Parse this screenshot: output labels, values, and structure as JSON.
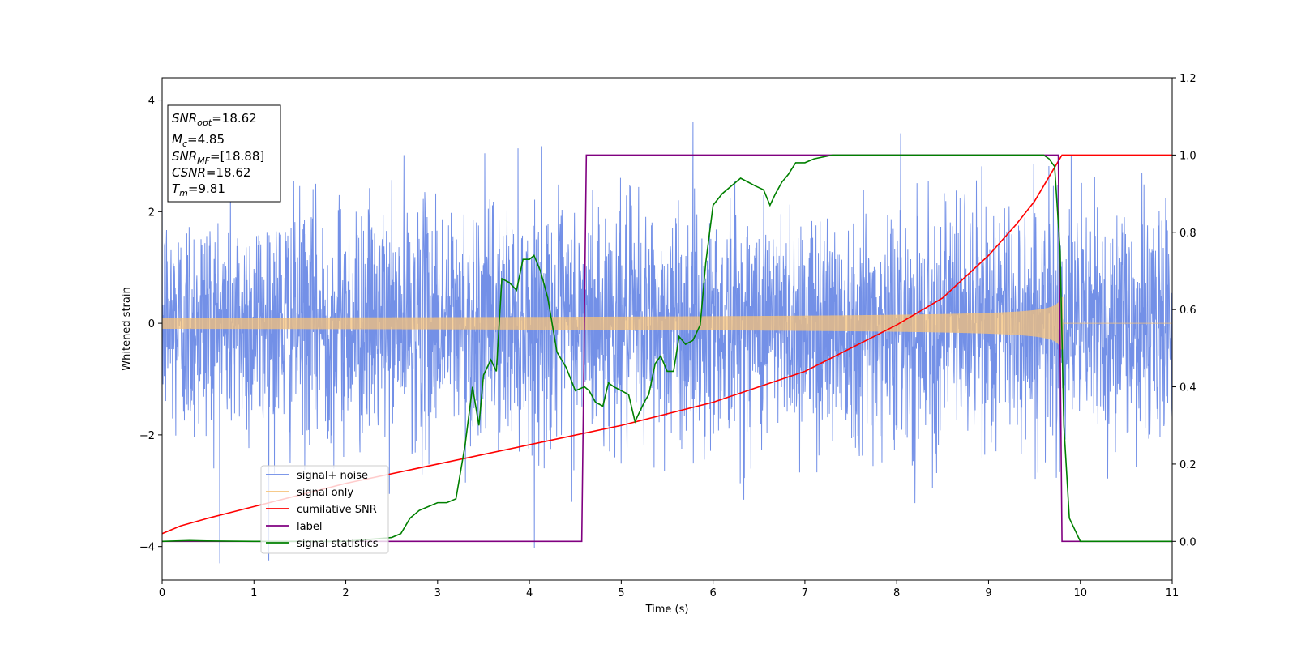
{
  "chart_data": {
    "type": "line",
    "xlabel": "Time (s)",
    "ylabel": "Whitened strain",
    "xlim": [
      0,
      11
    ],
    "ylim_left": [
      -4.6,
      4.4
    ],
    "ylim_right": [
      -0.1,
      1.2
    ],
    "x_ticks": [
      0,
      1,
      2,
      3,
      4,
      5,
      6,
      7,
      8,
      9,
      10,
      11
    ],
    "y_ticks_left": [
      -4,
      -2,
      0,
      2,
      4
    ],
    "y_ticks_right": [
      0.0,
      0.2,
      0.4,
      0.6,
      0.8,
      1.0,
      1.2
    ],
    "grid": false,
    "legend_position": "lower-left",
    "info_box": [
      {
        "base": "SNR",
        "sub": "opt",
        "rest": "=18.62"
      },
      {
        "base": "M",
        "sub": "c",
        "rest": "=4.85"
      },
      {
        "base": "SNR",
        "sub": "MF",
        "rest": "=[18.88]"
      },
      {
        "base": "CSNR",
        "sub": "",
        "rest": "=18.62"
      },
      {
        "base": "T",
        "sub": "m",
        "rest": "=9.81"
      }
    ],
    "series": [
      {
        "name": "signal+ noise",
        "color": "#6b8ae6",
        "axis": "left",
        "kind": "noise",
        "noise_std": 1.05,
        "t_end": 11
      },
      {
        "name": "signal only",
        "color": "#f5c27a",
        "axis": "left",
        "kind": "chirp",
        "t_merge": 9.81,
        "amp_start": 0.1,
        "amp_end": 1.05
      },
      {
        "name": "cumilative SNR",
        "color": "#ff0000",
        "axis": "right",
        "x": [
          0,
          0.2,
          0.5,
          1,
          2,
          3,
          4,
          5,
          6,
          7,
          8,
          8.5,
          9,
          9.3,
          9.5,
          9.6,
          9.7,
          9.75,
          9.8,
          9.81,
          11
        ],
        "y": [
          0.02,
          0.04,
          0.06,
          0.09,
          0.15,
          0.2,
          0.25,
          0.3,
          0.36,
          0.44,
          0.56,
          0.63,
          0.74,
          0.82,
          0.88,
          0.92,
          0.96,
          0.98,
          1.0,
          1.0,
          1.0
        ]
      },
      {
        "name": "label",
        "color": "#800080",
        "axis": "right",
        "x": [
          0,
          4.57,
          4.62,
          9.76,
          9.8,
          11
        ],
        "y": [
          0,
          0,
          1,
          1,
          0,
          0
        ]
      },
      {
        "name": "signal statistics",
        "color": "#008000",
        "axis": "right",
        "x": [
          0,
          0.3,
          0.5,
          1,
          2,
          2.5,
          2.6,
          2.7,
          2.8,
          2.9,
          3.0,
          3.1,
          3.2,
          3.3,
          3.38,
          3.45,
          3.5,
          3.58,
          3.64,
          3.7,
          3.78,
          3.86,
          3.93,
          4.0,
          4.05,
          4.12,
          4.2,
          4.3,
          4.4,
          4.5,
          4.6,
          4.65,
          4.72,
          4.8,
          4.86,
          4.92,
          5.0,
          5.08,
          5.15,
          5.25,
          5.3,
          5.37,
          5.43,
          5.5,
          5.57,
          5.63,
          5.7,
          5.78,
          5.86,
          5.92,
          6.0,
          6.1,
          6.2,
          6.3,
          6.38,
          6.46,
          6.55,
          6.62,
          6.68,
          6.75,
          6.82,
          6.9,
          7.0,
          7.1,
          7.3,
          7.5,
          7.8,
          8.5,
          9.0,
          9.5,
          9.6,
          9.66,
          9.72,
          9.78,
          9.82,
          9.88,
          10.0,
          11
        ],
        "y": [
          0.0,
          0.002,
          0.001,
          0.0,
          0.0,
          0.01,
          0.02,
          0.06,
          0.08,
          0.09,
          0.1,
          0.1,
          0.11,
          0.25,
          0.4,
          0.3,
          0.43,
          0.47,
          0.44,
          0.68,
          0.67,
          0.65,
          0.73,
          0.73,
          0.74,
          0.7,
          0.63,
          0.49,
          0.45,
          0.39,
          0.4,
          0.39,
          0.36,
          0.35,
          0.41,
          0.4,
          0.39,
          0.38,
          0.31,
          0.36,
          0.38,
          0.46,
          0.48,
          0.44,
          0.44,
          0.53,
          0.51,
          0.52,
          0.56,
          0.72,
          0.87,
          0.9,
          0.92,
          0.94,
          0.93,
          0.92,
          0.91,
          0.87,
          0.9,
          0.93,
          0.95,
          0.98,
          0.98,
          0.99,
          1.0,
          1.0,
          1.0,
          1.0,
          1.0,
          1.0,
          1.0,
          0.99,
          0.97,
          0.75,
          0.3,
          0.06,
          0.0,
          0.0
        ]
      }
    ]
  }
}
